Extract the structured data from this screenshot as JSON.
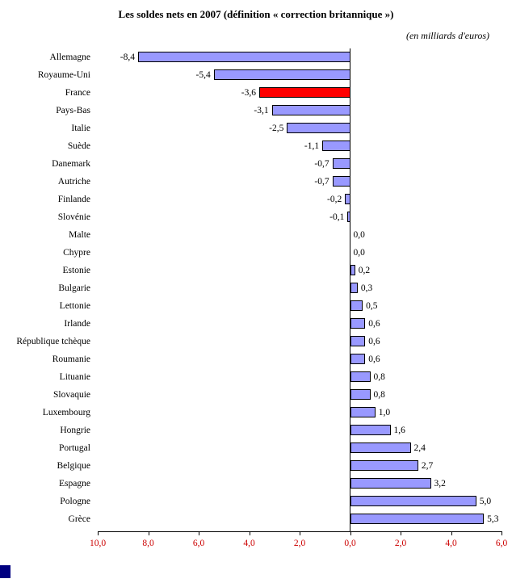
{
  "chart_data": {
    "type": "bar",
    "orientation": "horizontal",
    "title": "Les soldes nets en 2007 (définition « correction britannique »)",
    "subtitle": "(en milliards d'euros)",
    "categories": [
      "Allemagne",
      "Royaume-Uni",
      "France",
      "Pays-Bas",
      "Italie",
      "Suède",
      "Danemark",
      "Autriche",
      "Finlande",
      "Slovénie",
      "Malte",
      "Chypre",
      "Estonie",
      "Bulgarie",
      "Lettonie",
      "Irlande",
      "République tchèque",
      "Roumanie",
      "Lituanie",
      "Slovaquie",
      "Luxembourg",
      "Hongrie",
      "Portugal",
      "Belgique",
      "Espagne",
      "Pologne",
      "Grèce"
    ],
    "values": [
      -8.4,
      -5.4,
      -3.6,
      -3.1,
      -2.5,
      -1.1,
      -0.7,
      -0.7,
      -0.2,
      -0.1,
      0.0,
      0.0,
      0.2,
      0.3,
      0.5,
      0.6,
      0.6,
      0.6,
      0.8,
      0.8,
      1.0,
      1.6,
      2.4,
      2.7,
      3.2,
      5.0,
      5.3
    ],
    "value_labels": [
      "-8,4",
      "-5,4",
      "-3,6",
      "-3,1",
      "-2,5",
      "-1,1",
      "-0,7",
      "-0,7",
      "-0,2",
      "-0,1",
      "0,0",
      "0,0",
      "0,2",
      "0,3",
      "0,5",
      "0,6",
      "0,6",
      "0,6",
      "0,8",
      "0,8",
      "1,0",
      "1,6",
      "2,4",
      "2,7",
      "3,2",
      "5,0",
      "5,3"
    ],
    "highlighted_category": "France",
    "xlim": [
      -10,
      6
    ],
    "x_ticks": [
      -10,
      -8,
      -6,
      -4,
      -2,
      0,
      2,
      4,
      6
    ],
    "x_tick_labels": [
      "10,0",
      "8,0",
      "6,0",
      "4,0",
      "2,0",
      "0,0",
      "2,0",
      "4,0",
      "6,0"
    ],
    "legend": "none",
    "grid": "off",
    "colors": {
      "bar_fill": "#9999FF",
      "bar_border": "#000000",
      "highlight_fill": "#FF0000",
      "axis_tick_label": "#CC0000",
      "text": "#000000"
    }
  }
}
